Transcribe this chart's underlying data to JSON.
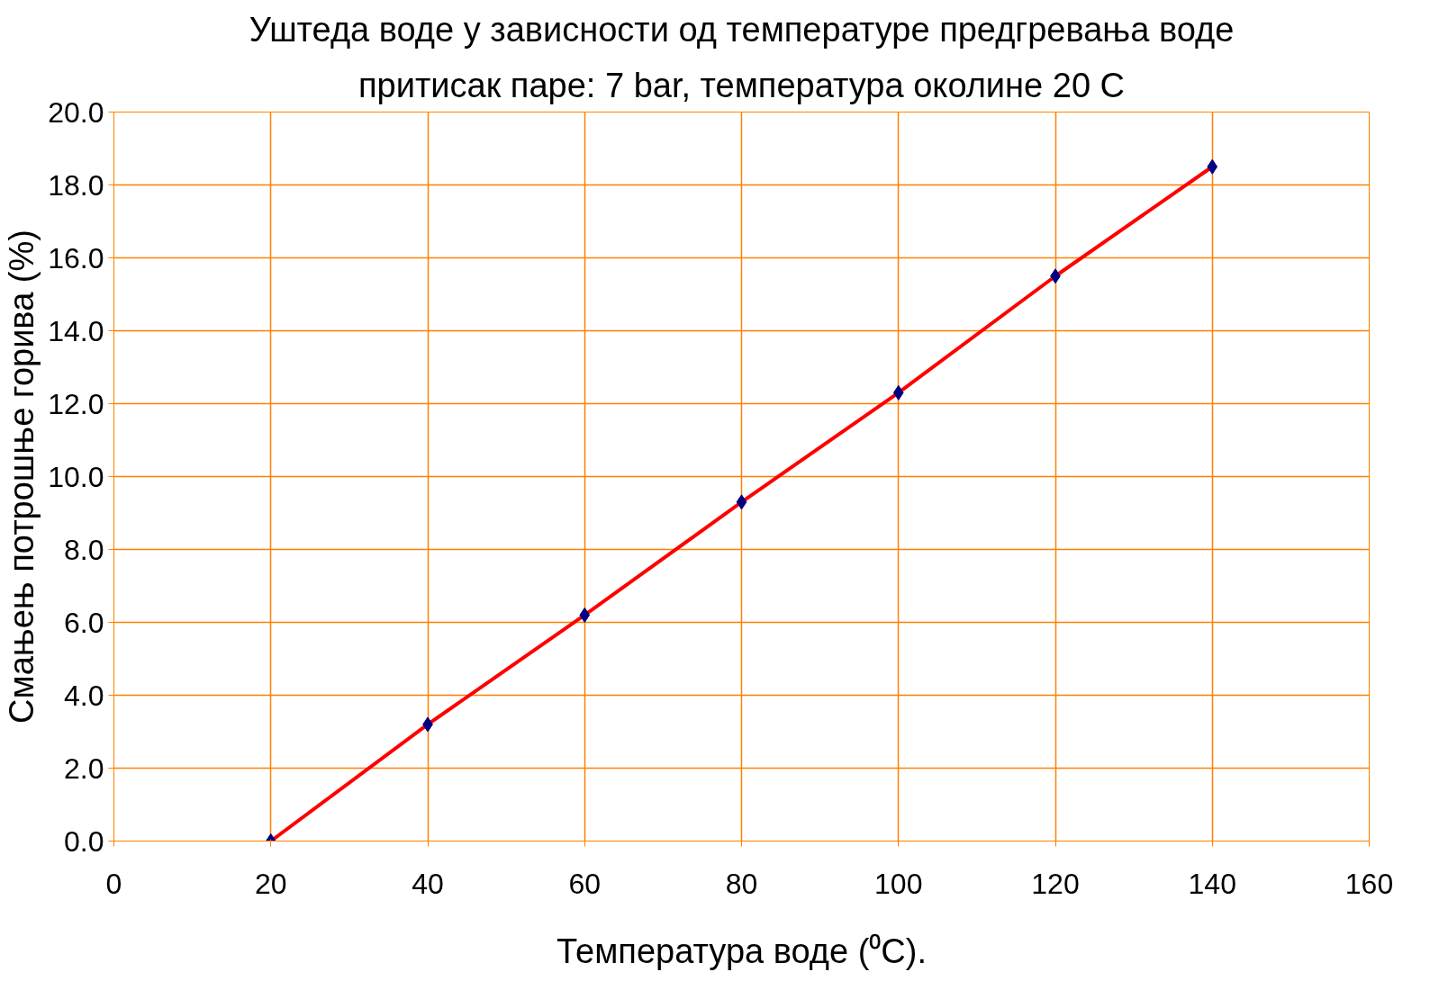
{
  "chart_data": {
    "type": "line",
    "title": "Уштеда воде у зависности од температуре предгревања воде",
    "subtitle": "притисак паре: 7 bar, температура околине 20 C",
    "xlabel": "Температура воде (⁰C).",
    "ylabel": "Смањењ потрошње горива (%)",
    "x": [
      20,
      40,
      60,
      80,
      100,
      120,
      140
    ],
    "series": [
      {
        "color": "#ff0000",
        "values": [
          0,
          3.2,
          6.2,
          9.3,
          12.3,
          15.5,
          18.5
        ]
      }
    ],
    "xlim": [
      0,
      160
    ],
    "xticks": [
      0,
      20,
      40,
      60,
      80,
      100,
      120,
      140,
      160
    ],
    "ylim": [
      0,
      20
    ],
    "yticks": [
      {
        "value": 0,
        "label": "0.0"
      },
      {
        "value": 2,
        "label": "2.0"
      },
      {
        "value": 4,
        "label": "4.0"
      },
      {
        "value": 6,
        "label": "6.0"
      },
      {
        "value": 8,
        "label": "8.0"
      },
      {
        "value": 10,
        "label": "10.0"
      },
      {
        "value": 12,
        "label": "12.0"
      },
      {
        "value": 14,
        "label": "14.0"
      },
      {
        "value": 16,
        "label": "16.0"
      },
      {
        "value": 18,
        "label": "18.0"
      },
      {
        "value": 20,
        "label": "20.0"
      }
    ],
    "grid": true,
    "marker": "diamond"
  }
}
